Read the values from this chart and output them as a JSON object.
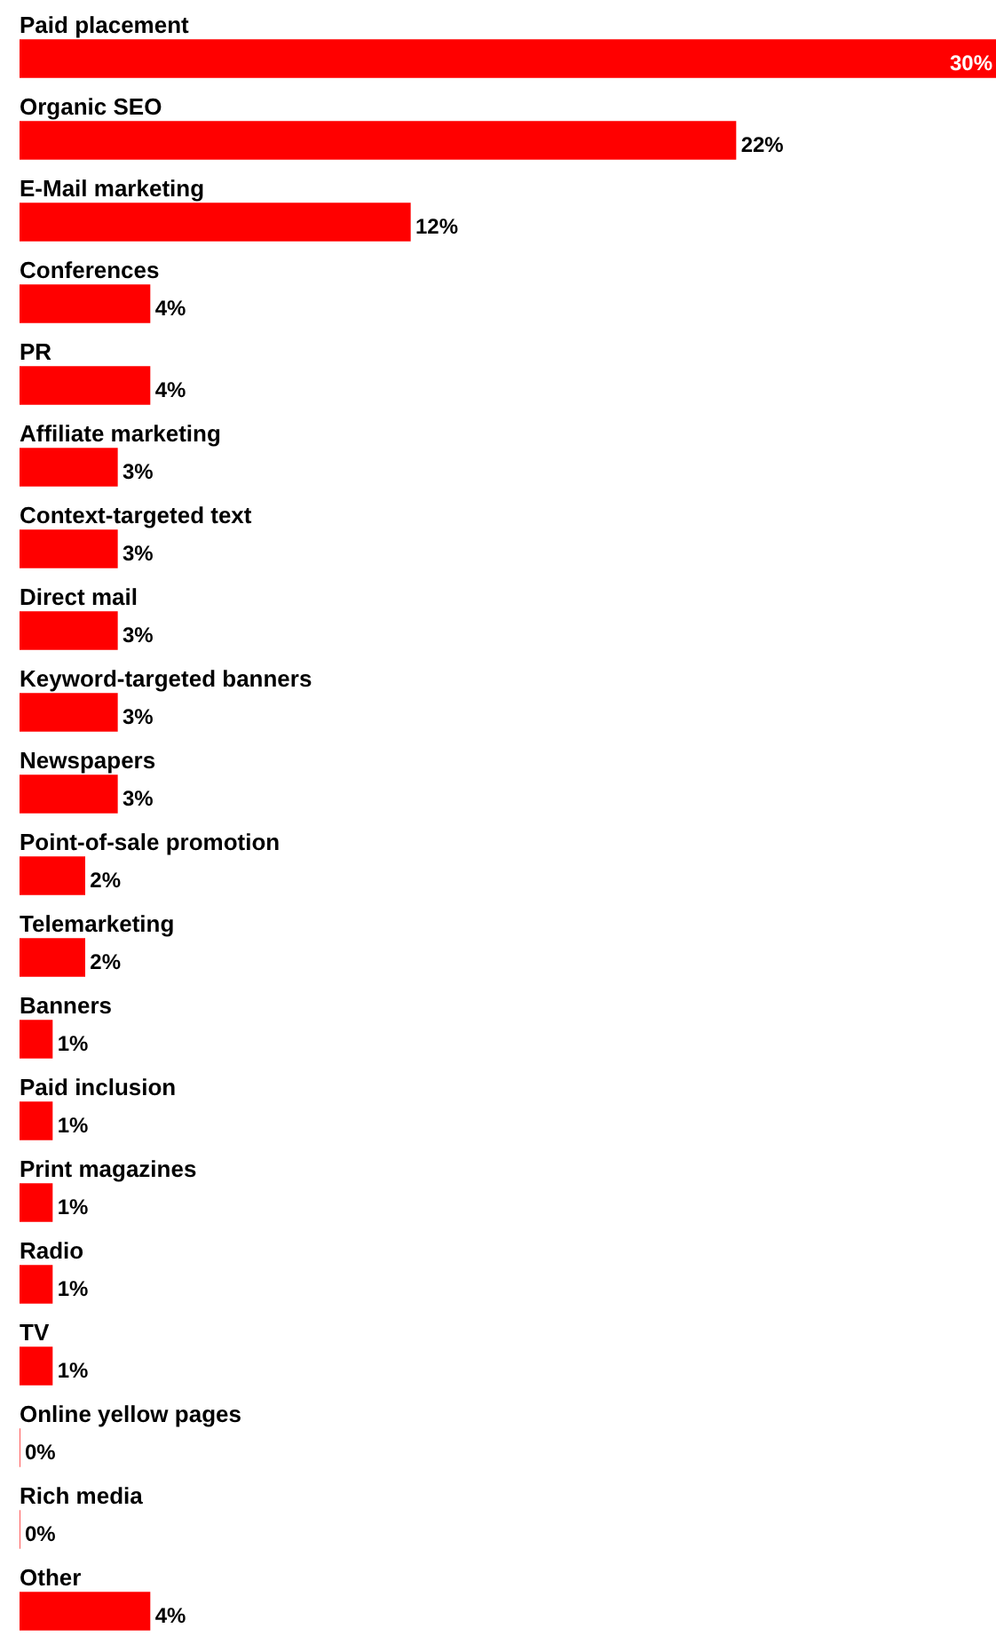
{
  "chart_data": {
    "type": "bar",
    "orientation": "horizontal",
    "categories": [
      "Paid placement",
      "Organic SEO",
      "E-Mail marketing",
      "Conferences",
      "PR",
      "Affiliate marketing",
      "Context-targeted text",
      "Direct mail",
      "Keyword-targeted banners",
      "Newspapers",
      "Point-of-sale promotion",
      "Telemarketing",
      "Banners",
      "Paid inclusion",
      "Print magazines",
      "Radio",
      "TV",
      "Online yellow pages",
      "Rich media",
      "Other"
    ],
    "values": [
      30,
      22,
      12,
      4,
      4,
      3,
      3,
      3,
      3,
      3,
      2,
      2,
      1,
      1,
      1,
      1,
      1,
      0,
      0,
      4
    ],
    "value_labels": [
      "30%",
      "22%",
      "12%",
      "4%",
      "4%",
      "3%",
      "3%",
      "3%",
      "3%",
      "3%",
      "2%",
      "2%",
      "1%",
      "1%",
      "1%",
      "1%",
      "1%",
      "0%",
      "0%",
      "4%"
    ],
    "color": "#ff0000",
    "legend": false,
    "tick_labels": false
  }
}
